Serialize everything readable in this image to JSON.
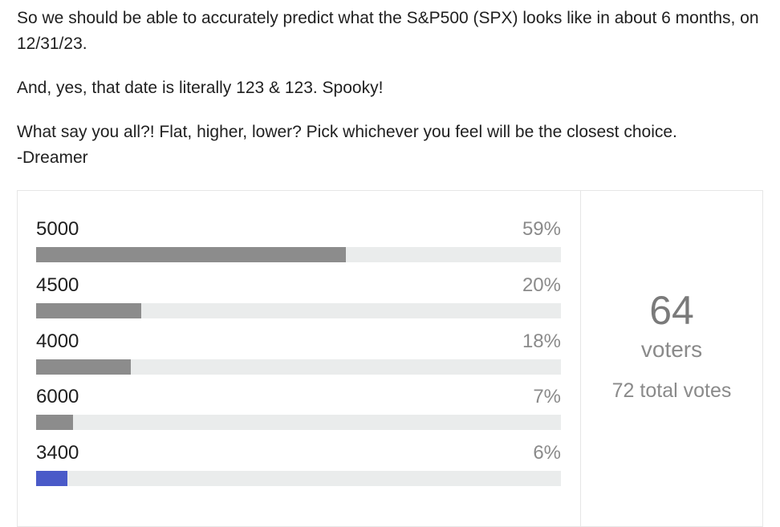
{
  "post": {
    "paragraph1": "So we should be able to accurately predict what the S&P500 (SPX) looks like in about 6 months, on 12/31/23.",
    "paragraph2": "And, yes, that date is literally 123 & 123. Spooky!",
    "paragraph3_line1": "What say you all?! Flat, higher, lower? Pick whichever you feel will be the closest choice.",
    "paragraph3_line2": "-Dreamer"
  },
  "poll": {
    "options": [
      {
        "label": "5000",
        "percent_text": "59%",
        "percent": 59,
        "selected": false
      },
      {
        "label": "4500",
        "percent_text": "20%",
        "percent": 20,
        "selected": false
      },
      {
        "label": "4000",
        "percent_text": "18%",
        "percent": 18,
        "selected": false
      },
      {
        "label": "6000",
        "percent_text": "7%",
        "percent": 7,
        "selected": false
      },
      {
        "label": "3400",
        "percent_text": "6%",
        "percent": 6,
        "selected": true
      }
    ],
    "summary": {
      "voters_count": "64",
      "voters_label": "voters",
      "total_votes": "72 total votes"
    },
    "colors": {
      "bar_fill": "#8c8c8c",
      "bar_selected": "#4a5ac8",
      "bar_track": "#eaecec"
    }
  }
}
